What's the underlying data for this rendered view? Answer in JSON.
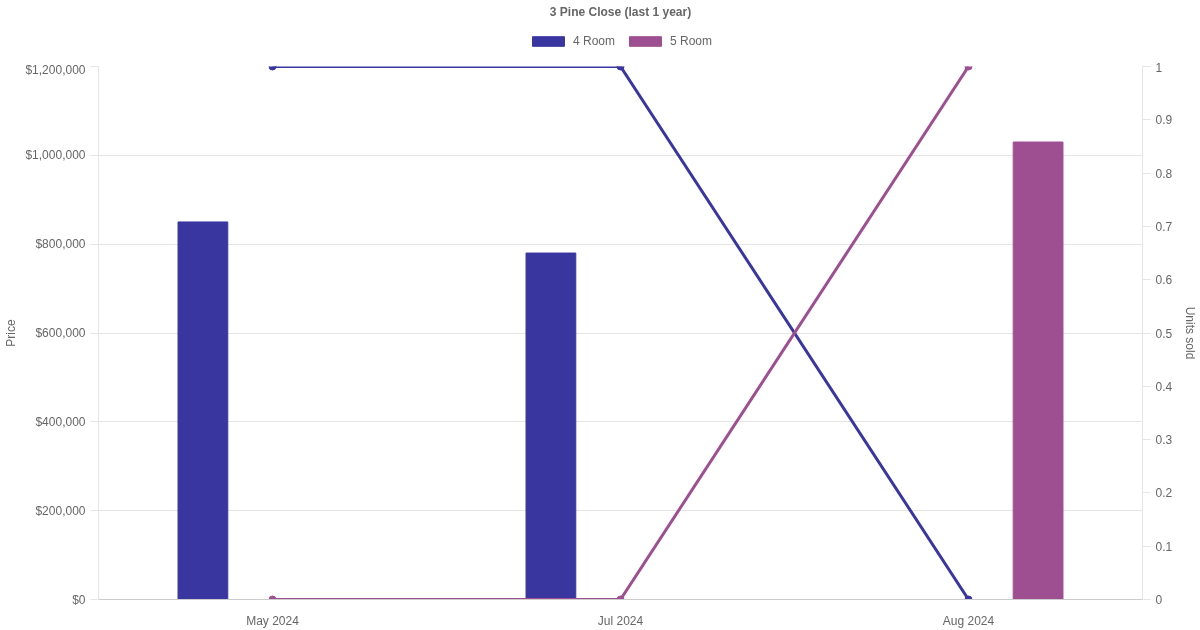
{
  "chart_data": {
    "type": "bar",
    "title": "3 Pine Close (last 1 year)",
    "categories": [
      "May 2024",
      "Jul 2024",
      "Aug 2024"
    ],
    "ylabel": "Price",
    "y2label": "Units sold",
    "ylim": [
      0,
      1200000
    ],
    "yticks": [
      {
        "value": 0,
        "label": "$0"
      },
      {
        "value": 200000,
        "label": "$200,000"
      },
      {
        "value": 400000,
        "label": "$400,000"
      },
      {
        "value": 600000,
        "label": "$600,000"
      },
      {
        "value": 800000,
        "label": "$800,000"
      },
      {
        "value": 1000000,
        "label": "$1,000,000"
      },
      {
        "value": 1200000,
        "label": "$1,200,000"
      }
    ],
    "y2lim": [
      0,
      1
    ],
    "y2ticks": [
      0,
      0.1,
      0.2,
      0.3,
      0.4,
      0.5,
      0.6,
      0.7,
      0.8,
      0.9,
      1
    ],
    "series": [
      {
        "name": "4 Room",
        "color": "#3a36a0",
        "values": [
          850000,
          780000,
          null
        ]
      },
      {
        "name": "5 Room",
        "color": "#9e4f92",
        "values": [
          null,
          null,
          1030000
        ]
      },
      {
        "type": "line",
        "axis": "y2",
        "color": "#3a36a0",
        "values": [
          1,
          1,
          0
        ]
      },
      {
        "type": "line",
        "axis": "y2",
        "color": "#9e4f92",
        "values": [
          0,
          0,
          1
        ]
      }
    ],
    "grid": "y",
    "legend": "top",
    "marker": "circle"
  }
}
